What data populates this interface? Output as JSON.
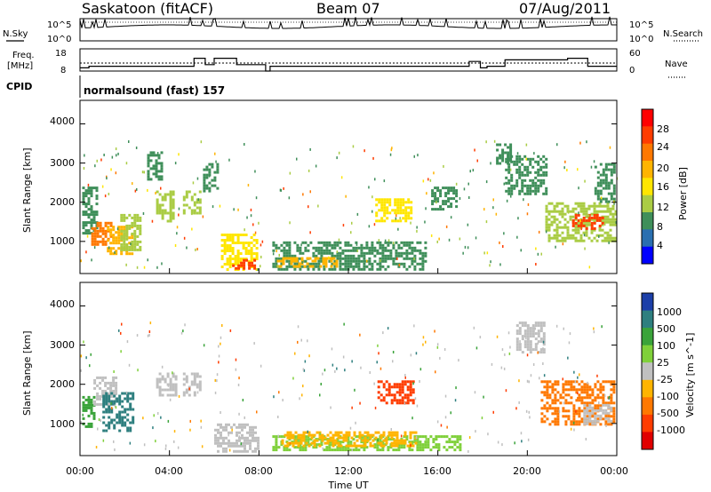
{
  "header": {
    "station": "Saskatoon (fitACF)",
    "beam": "Beam 07",
    "date": "07/Aug/2011"
  },
  "noise_panel": {
    "left_label": "N.Sky",
    "right_label": "N.Search",
    "left_ticks": [
      "10^5",
      "10^0"
    ],
    "right_ticks": [
      "10^5",
      "10^0"
    ]
  },
  "freq_panel": {
    "left_label_1": "Freq.",
    "left_label_2": "[MHz]",
    "right_label": "Nave",
    "left_ticks": [
      "18",
      "8"
    ],
    "right_ticks": [
      "60",
      "0"
    ]
  },
  "cpid": {
    "label": "CPID",
    "mode": "normalsound (fast) 157"
  },
  "power_panel": {
    "ylabel": "Slant Range [km]",
    "yticks": [
      "4000",
      "3000",
      "2000",
      "1000"
    ],
    "colorbar_label": "Power [dB]",
    "colorbar_ticks": [
      "28",
      "24",
      "20",
      "16",
      "12",
      "8",
      "4"
    ],
    "colorbar_colors": [
      "#ff0000",
      "#ff3c00",
      "#ff7800",
      "#ffb400",
      "#ffe600",
      "#aacc44",
      "#3f8f5a",
      "#2a6fb0",
      "#0000ff"
    ]
  },
  "velocity_panel": {
    "ylabel": "Slant Range [km]",
    "yticks": [
      "4000",
      "3000",
      "2000",
      "1000"
    ],
    "colorbar_label": "Velocity [m s^-1]",
    "colorbar_ticks": [
      "1000",
      "500",
      "100",
      "25",
      "-25",
      "-100",
      "-500",
      "-1000"
    ],
    "colorbar_colors": [
      "#1c3fa8",
      "#2e7f7f",
      "#3aa33a",
      "#7fd03a",
      "#c0c0c0",
      "#ffb400",
      "#ff7800",
      "#ff3c00",
      "#e00000"
    ]
  },
  "xaxis": {
    "label": "Time UT",
    "ticks": [
      "00:00",
      "04:00",
      "08:00",
      "12:00",
      "16:00",
      "20:00",
      "00:00"
    ]
  },
  "chart_data": {
    "type": "heatmap",
    "title": "Saskatoon (fitACF) Beam 07 07/Aug/2011",
    "xlabel": "Time UT",
    "ylabel": "Slant Range [km]",
    "xlim": [
      0,
      24
    ],
    "ylim": [
      180,
      4600
    ],
    "xtick_hours": [
      0,
      4,
      8,
      12,
      16,
      20,
      24
    ],
    "ytick_values": [
      1000,
      2000,
      3000,
      4000
    ],
    "freq_mhz_steps": [
      [
        0,
        0.4,
        10
      ],
      [
        0.4,
        1.9,
        11
      ],
      [
        1.9,
        5.1,
        11
      ],
      [
        5.1,
        5.6,
        16
      ],
      [
        5.6,
        6.0,
        12
      ],
      [
        6.0,
        7.0,
        16
      ],
      [
        7.0,
        8.3,
        12
      ],
      [
        8.3,
        8.5,
        8
      ],
      [
        8.5,
        15.2,
        11
      ],
      [
        15.2,
        17.4,
        11
      ],
      [
        17.4,
        17.9,
        14
      ],
      [
        17.9,
        18.2,
        10
      ],
      [
        18.2,
        19.0,
        11
      ],
      [
        19.0,
        20.5,
        15
      ],
      [
        20.5,
        21.8,
        15
      ],
      [
        21.8,
        22.7,
        16
      ],
      [
        22.7,
        24.0,
        11
      ]
    ],
    "power_db_regions": [
      {
        "t0": 0.1,
        "t1": 0.7,
        "r0": 1200,
        "r1": 2400,
        "db": 8
      },
      {
        "t0": 0.5,
        "t1": 1.4,
        "r0": 900,
        "r1": 1500,
        "db": 20
      },
      {
        "t0": 1.2,
        "t1": 2.3,
        "r0": 700,
        "r1": 1400,
        "db": 18
      },
      {
        "t0": 1.8,
        "t1": 2.7,
        "r0": 800,
        "r1": 1700,
        "db": 12
      },
      {
        "t0": 3.0,
        "t1": 3.6,
        "r0": 2600,
        "r1": 3300,
        "db": 6
      },
      {
        "t0": 3.4,
        "t1": 4.2,
        "r0": 1500,
        "r1": 2300,
        "db": 10
      },
      {
        "t0": 4.6,
        "t1": 5.4,
        "r0": 1700,
        "r1": 2300,
        "db": 10
      },
      {
        "t0": 5.5,
        "t1": 6.2,
        "r0": 2300,
        "r1": 3000,
        "db": 6
      },
      {
        "t0": 6.3,
        "t1": 7.9,
        "r0": 300,
        "r1": 1200,
        "db": 14
      },
      {
        "t0": 6.8,
        "t1": 7.8,
        "r0": 300,
        "r1": 550,
        "db": 26
      },
      {
        "t0": 8.6,
        "t1": 15.5,
        "r0": 300,
        "r1": 1000,
        "db": 8
      },
      {
        "t0": 8.8,
        "t1": 11.5,
        "r0": 350,
        "r1": 600,
        "db": 16
      },
      {
        "t0": 13.2,
        "t1": 14.8,
        "r0": 1500,
        "r1": 2100,
        "db": 14
      },
      {
        "t0": 15.7,
        "t1": 16.8,
        "r0": 1800,
        "r1": 2400,
        "db": 8
      },
      {
        "t0": 18.6,
        "t1": 19.2,
        "r0": 3000,
        "r1": 3500,
        "db": 6
      },
      {
        "t0": 19.0,
        "t1": 20.8,
        "r0": 2200,
        "r1": 3200,
        "db": 6
      },
      {
        "t0": 20.8,
        "t1": 23.9,
        "r0": 1000,
        "r1": 2000,
        "db": 12
      },
      {
        "t0": 22.0,
        "t1": 23.4,
        "r0": 1300,
        "r1": 1700,
        "db": 24
      },
      {
        "t0": 23.0,
        "t1": 23.9,
        "r0": 2000,
        "r1": 3000,
        "db": 8
      }
    ],
    "velocity_ms_regions": [
      {
        "t0": 0.1,
        "t1": 0.6,
        "r0": 900,
        "r1": 1700,
        "v": 100
      },
      {
        "t0": 0.6,
        "t1": 1.6,
        "r0": 1500,
        "r1": 2200,
        "v": 0
      },
      {
        "t0": 1.0,
        "t1": 2.4,
        "r0": 800,
        "r1": 1800,
        "v": 500
      },
      {
        "t0": 3.4,
        "t1": 4.3,
        "r0": 1700,
        "r1": 2300,
        "v": 0
      },
      {
        "t0": 4.6,
        "t1": 5.4,
        "r0": 1700,
        "r1": 2300,
        "v": 0
      },
      {
        "t0": 6.0,
        "t1": 8.0,
        "r0": 300,
        "r1": 1000,
        "v": 0
      },
      {
        "t0": 8.6,
        "t1": 17.0,
        "r0": 300,
        "r1": 700,
        "v": 50
      },
      {
        "t0": 9.0,
        "t1": 15.0,
        "r0": 400,
        "r1": 800,
        "v": -50
      },
      {
        "t0": 13.3,
        "t1": 14.9,
        "r0": 1500,
        "r1": 2100,
        "v": -500
      },
      {
        "t0": 19.5,
        "t1": 20.7,
        "r0": 2800,
        "r1": 3600,
        "v": 0
      },
      {
        "t0": 20.6,
        "t1": 23.9,
        "r0": 1000,
        "r1": 2100,
        "v": -300
      },
      {
        "t0": 22.5,
        "t1": 23.8,
        "r0": 1000,
        "r1": 1500,
        "v": 0
      }
    ]
  }
}
